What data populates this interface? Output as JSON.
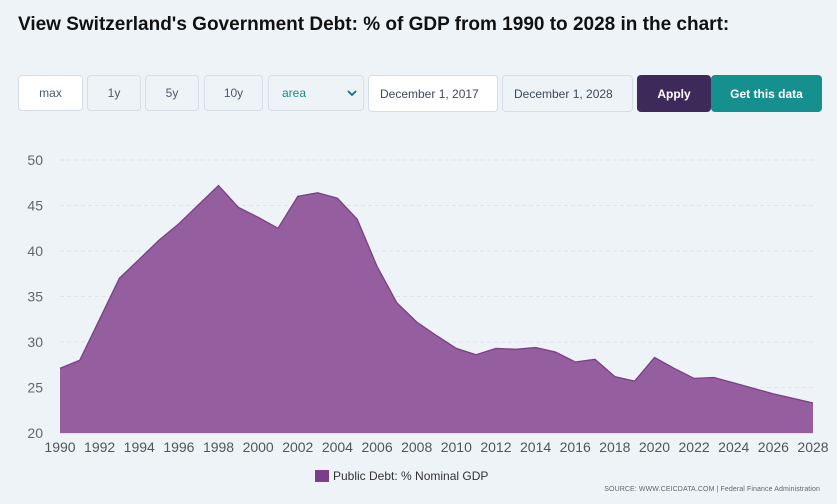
{
  "title": "View Switzerland's Government Debt: % of GDP from 1990 to 2028 in the chart:",
  "controls": {
    "max": "max",
    "y1": "1y",
    "y5": "5y",
    "y10": "10y",
    "chart_type": "area",
    "date_from": "December 1, 2017",
    "date_to": "December 1, 2028",
    "apply": "Apply",
    "get_data": "Get this data"
  },
  "colors": {
    "area_fill": "#955e9e",
    "area_line": "#7a3f86",
    "legend_swatch": "#7b3f8a",
    "apply_bg": "#3d2a5b",
    "get_data_bg": "#16908f"
  },
  "source": "SOURCE: WWW.CEICDATA.COM | Federal Finance Administration",
  "chart_data": {
    "type": "area",
    "title": "",
    "xlabel": "",
    "ylabel": "",
    "ylim": [
      20,
      50
    ],
    "yticks": [
      20,
      25,
      30,
      35,
      40,
      45,
      50
    ],
    "xlim": [
      1990,
      2028
    ],
    "xticks": [
      1990,
      1992,
      1994,
      1996,
      1998,
      2000,
      2002,
      2004,
      2006,
      2008,
      2010,
      2012,
      2014,
      2016,
      2018,
      2020,
      2022,
      2024,
      2026,
      2028
    ],
    "grid": true,
    "legend": "bottom-center",
    "series": [
      {
        "name": "Public Debt: % Nominal GDP",
        "x": [
          1990,
          1991,
          1992,
          1993,
          1994,
          1995,
          1996,
          1997,
          1998,
          1999,
          2000,
          2001,
          2002,
          2003,
          2004,
          2005,
          2006,
          2007,
          2008,
          2009,
          2010,
          2011,
          2012,
          2013,
          2014,
          2015,
          2016,
          2017,
          2018,
          2019,
          2020,
          2021,
          2022,
          2023,
          2024,
          2025,
          2026,
          2027,
          2028
        ],
        "values": [
          27.1,
          28.0,
          32.5,
          37.0,
          39.1,
          41.2,
          43.0,
          45.1,
          47.2,
          44.8,
          43.7,
          42.5,
          46.0,
          46.4,
          45.8,
          43.5,
          38.3,
          34.3,
          32.2,
          30.7,
          29.3,
          28.6,
          29.3,
          29.2,
          29.4,
          28.9,
          27.8,
          28.1,
          26.2,
          25.7,
          28.3,
          27.1,
          26.0,
          26.1,
          25.5,
          24.9,
          24.3,
          23.8,
          23.3
        ]
      }
    ]
  }
}
